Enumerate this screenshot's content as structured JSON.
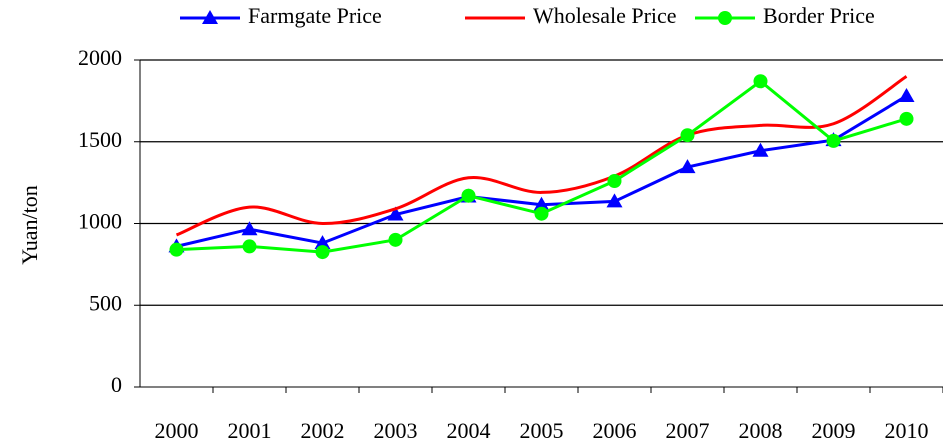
{
  "chart_data": {
    "type": "line",
    "y_label": "Yuan/ton",
    "categories": [
      "2000",
      "2001",
      "2002",
      "2003",
      "2004",
      "2005",
      "2006",
      "2007",
      "2008",
      "2009",
      "2010"
    ],
    "series": [
      {
        "name": "Farmgate Price",
        "color": "#0000ff",
        "marker": "triangle",
        "smooth": false,
        "values": [
          860,
          965,
          880,
          1055,
          1165,
          1115,
          1135,
          1345,
          1445,
          1510,
          1780
        ]
      },
      {
        "name": "Wholesale Price",
        "color": "#ff0000",
        "marker": "none",
        "smooth": true,
        "values": [
          930,
          1100,
          1000,
          1090,
          1280,
          1190,
          1290,
          1540,
          1600,
          1610,
          1900
        ]
      },
      {
        "name": "Border Price",
        "color": "#00ff00",
        "marker": "circle",
        "smooth": false,
        "values": [
          840,
          860,
          825,
          900,
          1170,
          1060,
          1260,
          1540,
          1870,
          1505,
          1640
        ]
      }
    ],
    "ylim": [
      0,
      2000
    ],
    "yticks": [
      0,
      500,
      1000,
      1500,
      2000
    ],
    "grid": true,
    "legend": "top"
  }
}
